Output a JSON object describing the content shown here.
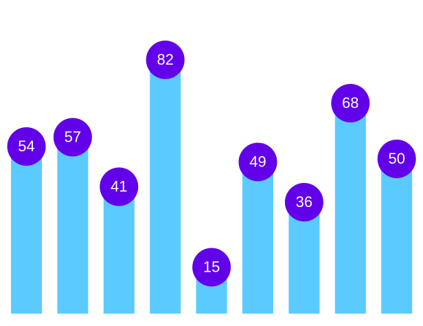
{
  "chart_data": {
    "type": "bar",
    "categories": [
      "",
      "",
      "",
      "",
      "",
      "",
      "",
      "",
      ""
    ],
    "values": [
      54,
      57,
      41,
      82,
      15,
      49,
      36,
      68,
      50
    ],
    "ylim": [
      0,
      100
    ],
    "grid": false,
    "bar_color": "#5BCBFF",
    "label_marker_color": "#6200EA",
    "label_text_color": "#FFFFFF"
  }
}
